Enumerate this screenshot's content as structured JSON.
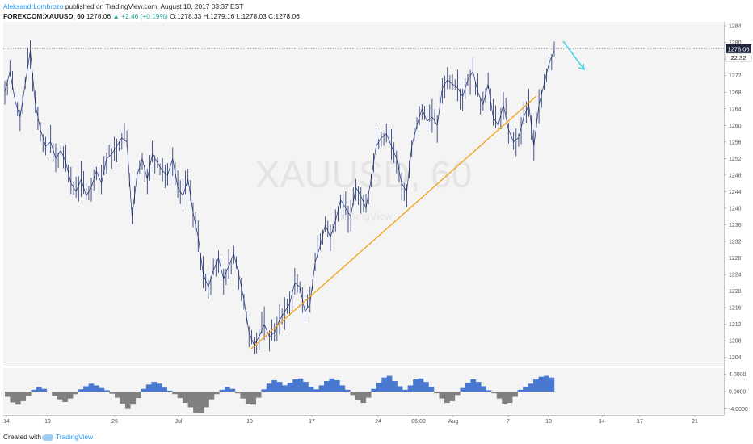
{
  "header": {
    "author": "AleksandrLombrozo",
    "published_text": "published on TradingView.com, August 10, 2017 03:37 EST",
    "symbol": "FOREXCOM:XAUUSD, 60",
    "last": "1278.06",
    "change": "▲ +2.46 (+0.19%)",
    "o": "O:1278.33",
    "h": "H:1279.16",
    "l": "L:1278.03",
    "c": "C:1278.06"
  },
  "watermark": {
    "main": "XAUUSD, 60",
    "sub": "TradingView"
  },
  "price_label": "1278.06",
  "countdown_label": "22:32",
  "footer": {
    "created": "Created with",
    "brand": "TradingView"
  },
  "colors": {
    "candle": "#1e2f6e",
    "trendline": "#f5a623",
    "arrow": "#4dd0e1",
    "osc_pos": "#2a62c9",
    "osc_neg": "#6b6b6b",
    "background": "#f4f4f4"
  },
  "icons": [
    "tradingview-logo-icon"
  ],
  "chart_data": [
    {
      "type": "line",
      "title": "",
      "series": [
        {
          "values": [
            1268,
            1273,
            1266,
            1262,
            1270,
            1278,
            1265,
            1259,
            1255,
            1256,
            1252,
            1254,
            1251,
            1246,
            1244,
            1247,
            1243,
            1245,
            1249,
            1246,
            1252,
            1253,
            1255,
            1257,
            1256,
            1238,
            1248,
            1252,
            1247,
            1253,
            1251,
            1249,
            1248,
            1252,
            1245,
            1243,
            1247,
            1239,
            1233,
            1224,
            1221,
            1225,
            1228,
            1223,
            1226,
            1229,
            1224,
            1218,
            1210,
            1207,
            1209,
            1212,
            1209,
            1210,
            1213,
            1215,
            1217,
            1222,
            1221,
            1215,
            1217,
            1227,
            1231,
            1236,
            1233,
            1237,
            1242,
            1240,
            1238,
            1245,
            1243,
            1240,
            1247,
            1255,
            1257,
            1258,
            1255,
            1252,
            1246,
            1244,
            1255,
            1260,
            1264,
            1261,
            1262,
            1260,
            1269,
            1271,
            1270,
            1269,
            1267,
            1271,
            1273,
            1268,
            1265,
            1270,
            1262,
            1260,
            1265,
            1259,
            1256,
            1257,
            1262,
            1265,
            1255,
            1265,
            1270,
            1275,
            1278.06
          ],
          "ylim": [
            1202,
            1285
          ],
          "y_ticks": [
            1284,
            1280,
            1276,
            1272,
            1268,
            1264,
            1260,
            1256,
            1252,
            1248,
            1244,
            1240,
            1236,
            1232,
            1228,
            1224,
            1220,
            1216,
            1212,
            1208,
            1204
          ]
        }
      ]
    },
    {
      "type": "bar",
      "title": "",
      "y_ticks": [
        "4.0000",
        "0.0000",
        "-4.0000"
      ],
      "ylim": [
        -5,
        5
      ],
      "series": [
        {
          "values": [
            -1.2,
            -2.5,
            -3.0,
            -2.2,
            -1.0,
            0.4,
            1.0,
            0.6,
            -0.2,
            -1.0,
            -1.8,
            -2.4,
            -1.6,
            -0.6,
            0.5,
            1.2,
            1.8,
            1.4,
            0.8,
            0.3,
            -0.5,
            -1.4,
            -2.8,
            -4.0,
            -3.0,
            -1.5,
            0.6,
            1.6,
            2.2,
            1.8,
            0.9,
            0.2,
            -0.6,
            -1.5,
            -2.6,
            -3.6,
            -4.8,
            -5.0,
            -3.6,
            -1.8,
            -0.6,
            0.4,
            1.0,
            0.6,
            -0.4,
            -1.6,
            -2.8,
            -3.0,
            -1.4,
            0.5,
            1.8,
            2.6,
            2.2,
            1.4,
            2.0,
            2.8,
            3.0,
            2.2,
            1.0,
            0.5,
            1.4,
            2.4,
            3.0,
            2.6,
            1.4,
            0.4,
            -0.8,
            -2.0,
            -2.6,
            -1.4,
            0.6,
            2.0,
            3.2,
            3.6,
            2.4,
            1.2,
            0.4,
            1.4,
            2.8,
            3.0,
            2.2,
            1.0,
            -0.4,
            -1.6,
            -2.6,
            -2.2,
            -0.8,
            0.8,
            2.0,
            2.8,
            2.2,
            1.2,
            0.3,
            -0.4,
            -1.6,
            -2.8,
            -2.6,
            -1.2,
            0.4,
            1.0,
            1.8,
            2.8,
            3.4,
            3.6,
            3.2
          ]
        }
      ]
    }
  ],
  "x_axis": {
    "labels": [
      "14",
      "19",
      "26",
      "Jul",
      "10",
      "17",
      "24",
      "06:00",
      "Aug",
      "7",
      "10",
      "14",
      "17",
      "21"
    ]
  }
}
